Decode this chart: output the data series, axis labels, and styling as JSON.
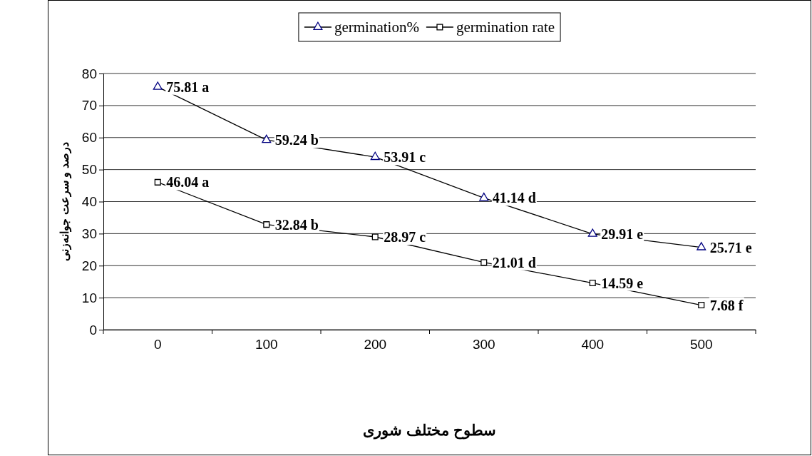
{
  "chart_data": {
    "type": "line",
    "xlabel": "سطوح مختلف شوری",
    "ylabel": "درصد و سرعت جوانه‌زنی",
    "categories": [
      "0",
      "100",
      "200",
      "300",
      "400",
      "500"
    ],
    "series": [
      {
        "name": "germination%",
        "color": "#000000",
        "marker": "triangle",
        "values": [
          75.81,
          59.24,
          53.91,
          41.14,
          29.91,
          25.71
        ],
        "value_labels": [
          "75.81 a",
          "59.24 b",
          "53.91 c",
          "41.14 d",
          "29.91 e",
          "25.71 e"
        ]
      },
      {
        "name": "germination rate",
        "color": "#000000",
        "marker": "square",
        "values": [
          46.04,
          32.84,
          28.97,
          21.01,
          14.59,
          7.68
        ],
        "value_labels": [
          "46.04 a",
          "32.84 b",
          "28.97 c",
          "21.01 d",
          "14.59 e",
          "7.68 f"
        ]
      }
    ],
    "ylim": [
      0,
      80
    ],
    "yticks": [
      0,
      10,
      20,
      30,
      40,
      50,
      60,
      70,
      80
    ],
    "grid": "y",
    "legend": "top",
    "line_style": "solid"
  }
}
